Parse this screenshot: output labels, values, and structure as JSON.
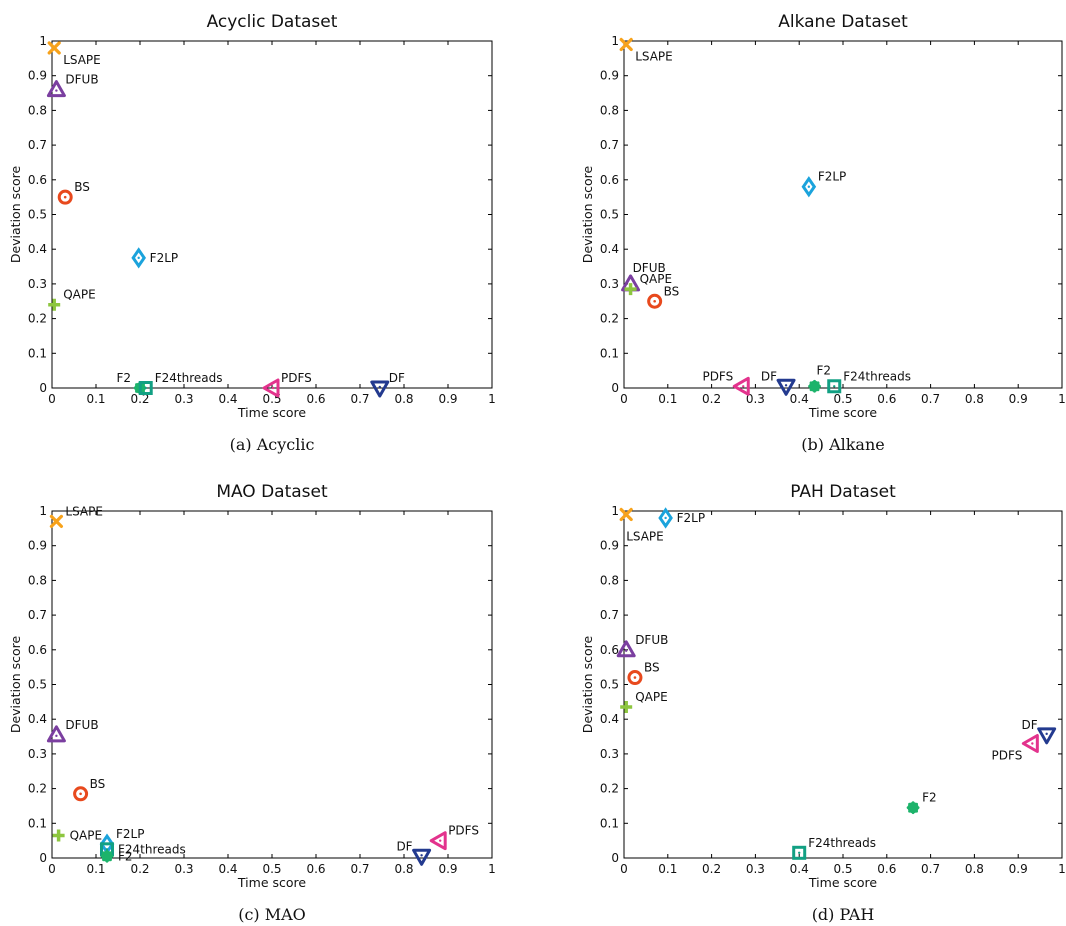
{
  "chart_data": [
    {
      "type": "scatter",
      "title": "Acyclic Dataset",
      "xlabel": "Time score",
      "ylabel": "Deviation score",
      "caption": "(a)  Acyclic",
      "xlim": [
        0,
        1
      ],
      "ylim": [
        0,
        1
      ],
      "xticks": [
        "0",
        "0.1",
        "0.2",
        "0.3",
        "0.4",
        "0.5",
        "0.6",
        "0.7",
        "0.8",
        "0.9",
        "1"
      ],
      "yticks": [
        "0",
        "0.1",
        "0.2",
        "0.3",
        "0.4",
        "0.5",
        "0.6",
        "0.7",
        "0.8",
        "0.9",
        "1"
      ],
      "points": [
        {
          "name": "LSAPE",
          "x": 0.005,
          "y": 0.98,
          "marker": "x",
          "color": "#f7a21b",
          "label_pos": "br"
        },
        {
          "name": "DFUB",
          "x": 0.01,
          "y": 0.86,
          "marker": "tri-up",
          "color": "#7b3fa0",
          "label_pos": "tr"
        },
        {
          "name": "BS",
          "x": 0.03,
          "y": 0.55,
          "marker": "ring",
          "color": "#e8491d",
          "label_pos": "tr"
        },
        {
          "name": "F2LP",
          "x": 0.197,
          "y": 0.375,
          "marker": "diamond",
          "color": "#1ba3dc",
          "label_pos": "r"
        },
        {
          "name": "QAPE",
          "x": 0.005,
          "y": 0.24,
          "marker": "plus",
          "color": "#8dc63f",
          "label_pos": "tr"
        },
        {
          "name": "F2",
          "x": 0.2,
          "y": 0.0,
          "marker": "star",
          "color": "#1db36b",
          "label_pos": "tl"
        },
        {
          "name": "F24threads",
          "x": 0.213,
          "y": 0.0,
          "marker": "square",
          "color": "#12a083",
          "label_pos": "tr"
        },
        {
          "name": "PDFS",
          "x": 0.5,
          "y": 0.0,
          "marker": "tri-left",
          "color": "#e3338d",
          "label_pos": "tr"
        },
        {
          "name": "DF",
          "x": 0.745,
          "y": 0.0,
          "marker": "tri-down",
          "color": "#233a8f",
          "label_pos": "tr"
        }
      ]
    },
    {
      "type": "scatter",
      "title": "Alkane Dataset",
      "xlabel": "Time score",
      "ylabel": "Deviation score",
      "caption": "(b)  Alkane",
      "xlim": [
        0,
        1
      ],
      "ylim": [
        0,
        1
      ],
      "xticks": [
        "0",
        "0.1",
        "0.2",
        "0.3",
        "0.4",
        "0.5",
        "0.6",
        "0.7",
        "0.8",
        "0.9",
        "1"
      ],
      "yticks": [
        "0",
        "0.1",
        "0.2",
        "0.3",
        "0.4",
        "0.5",
        "0.6",
        "0.7",
        "0.8",
        "0.9",
        "1"
      ],
      "points": [
        {
          "name": "LSAPE",
          "x": 0.005,
          "y": 0.99,
          "marker": "x",
          "color": "#f7a21b",
          "label_pos": "br"
        },
        {
          "name": "F2LP",
          "x": 0.422,
          "y": 0.58,
          "marker": "diamond",
          "color": "#1ba3dc",
          "label_pos": "tr"
        },
        {
          "name": "DFUB",
          "x": 0.015,
          "y": 0.3,
          "marker": "tri-up",
          "color": "#7b3fa0",
          "label_pos": "t"
        },
        {
          "name": "QAPE",
          "x": 0.015,
          "y": 0.285,
          "marker": "plus",
          "color": "#8dc63f",
          "label_pos": "tr"
        },
        {
          "name": "BS",
          "x": 0.07,
          "y": 0.25,
          "marker": "ring",
          "color": "#e8491d",
          "label_pos": "tr"
        },
        {
          "name": "PDFS",
          "x": 0.27,
          "y": 0.005,
          "marker": "tri-left",
          "color": "#e3338d",
          "label_pos": "tl"
        },
        {
          "name": "DF",
          "x": 0.37,
          "y": 0.005,
          "marker": "tri-down",
          "color": "#233a8f",
          "label_pos": "tl"
        },
        {
          "name": "F2",
          "x": 0.435,
          "y": 0.005,
          "marker": "star",
          "color": "#1db36b",
          "label_pos": "t"
        },
        {
          "name": "F24threads",
          "x": 0.48,
          "y": 0.005,
          "marker": "square",
          "color": "#12a083",
          "label_pos": "tr"
        }
      ]
    },
    {
      "type": "scatter",
      "title": "MAO Dataset",
      "xlabel": "Time score",
      "ylabel": "Deviation score",
      "caption": "(c)  MAO",
      "xlim": [
        0,
        1
      ],
      "ylim": [
        0,
        1
      ],
      "xticks": [
        "0",
        "0.1",
        "0.2",
        "0.3",
        "0.4",
        "0.5",
        "0.6",
        "0.7",
        "0.8",
        "0.9",
        "1"
      ],
      "yticks": [
        "0",
        "0.1",
        "0.2",
        "0.3",
        "0.4",
        "0.5",
        "0.6",
        "0.7",
        "0.8",
        "0.9",
        "1"
      ],
      "points": [
        {
          "name": "LSAPE",
          "x": 0.01,
          "y": 0.97,
          "marker": "x",
          "color": "#f7a21b",
          "label_pos": "tr"
        },
        {
          "name": "DFUB",
          "x": 0.01,
          "y": 0.355,
          "marker": "tri-up",
          "color": "#7b3fa0",
          "label_pos": "tr"
        },
        {
          "name": "BS",
          "x": 0.065,
          "y": 0.185,
          "marker": "ring",
          "color": "#e8491d",
          "label_pos": "tr"
        },
        {
          "name": "QAPE",
          "x": 0.015,
          "y": 0.065,
          "marker": "plus",
          "color": "#8dc63f",
          "label_pos": "r"
        },
        {
          "name": "F2LP",
          "x": 0.125,
          "y": 0.04,
          "marker": "diamond",
          "color": "#1ba3dc",
          "label_pos": "tr"
        },
        {
          "name": "F24threads",
          "x": 0.125,
          "y": 0.025,
          "marker": "square",
          "color": "#12a083",
          "label_pos": "r"
        },
        {
          "name": "F2",
          "x": 0.125,
          "y": 0.005,
          "marker": "star",
          "color": "#1db36b",
          "label_pos": "r"
        },
        {
          "name": "DF",
          "x": 0.84,
          "y": 0.005,
          "marker": "tri-down",
          "color": "#233a8f",
          "label_pos": "tl"
        },
        {
          "name": "PDFS",
          "x": 0.88,
          "y": 0.05,
          "marker": "tri-left",
          "color": "#e3338d",
          "label_pos": "tr"
        }
      ]
    },
    {
      "type": "scatter",
      "title": "PAH Dataset",
      "xlabel": "Time score",
      "ylabel": "Deviation score",
      "caption": "(d)  PAH",
      "xlim": [
        0,
        1
      ],
      "ylim": [
        0,
        1
      ],
      "xticks": [
        "0",
        "0.1",
        "0.2",
        "0.3",
        "0.4",
        "0.5",
        "0.6",
        "0.7",
        "0.8",
        "0.9",
        "1"
      ],
      "yticks": [
        "0",
        "0.1",
        "0.2",
        "0.3",
        "0.4",
        "0.5",
        "0.6",
        "0.7",
        "0.8",
        "0.9",
        "1"
      ],
      "points": [
        {
          "name": "LSAPE",
          "x": 0.005,
          "y": 0.99,
          "marker": "x",
          "color": "#f7a21b",
          "label_pos": "b"
        },
        {
          "name": "F2LP",
          "x": 0.095,
          "y": 0.98,
          "marker": "diamond",
          "color": "#1ba3dc",
          "label_pos": "r"
        },
        {
          "name": "DFUB",
          "x": 0.005,
          "y": 0.6,
          "marker": "tri-up",
          "color": "#7b3fa0",
          "label_pos": "tr"
        },
        {
          "name": "BS",
          "x": 0.025,
          "y": 0.52,
          "marker": "ring",
          "color": "#e8491d",
          "label_pos": "tr"
        },
        {
          "name": "QAPE",
          "x": 0.005,
          "y": 0.435,
          "marker": "plus",
          "color": "#8dc63f",
          "label_pos": "tr"
        },
        {
          "name": "DF",
          "x": 0.965,
          "y": 0.355,
          "marker": "tri-down",
          "color": "#233a8f",
          "label_pos": "tl"
        },
        {
          "name": "PDFS",
          "x": 0.93,
          "y": 0.33,
          "marker": "tri-left",
          "color": "#e3338d",
          "label_pos": "bl"
        },
        {
          "name": "F2",
          "x": 0.66,
          "y": 0.145,
          "marker": "star",
          "color": "#1db36b",
          "label_pos": "tr"
        },
        {
          "name": "F24threads",
          "x": 0.4,
          "y": 0.015,
          "marker": "square",
          "color": "#12a083",
          "label_pos": "tr"
        }
      ]
    }
  ]
}
